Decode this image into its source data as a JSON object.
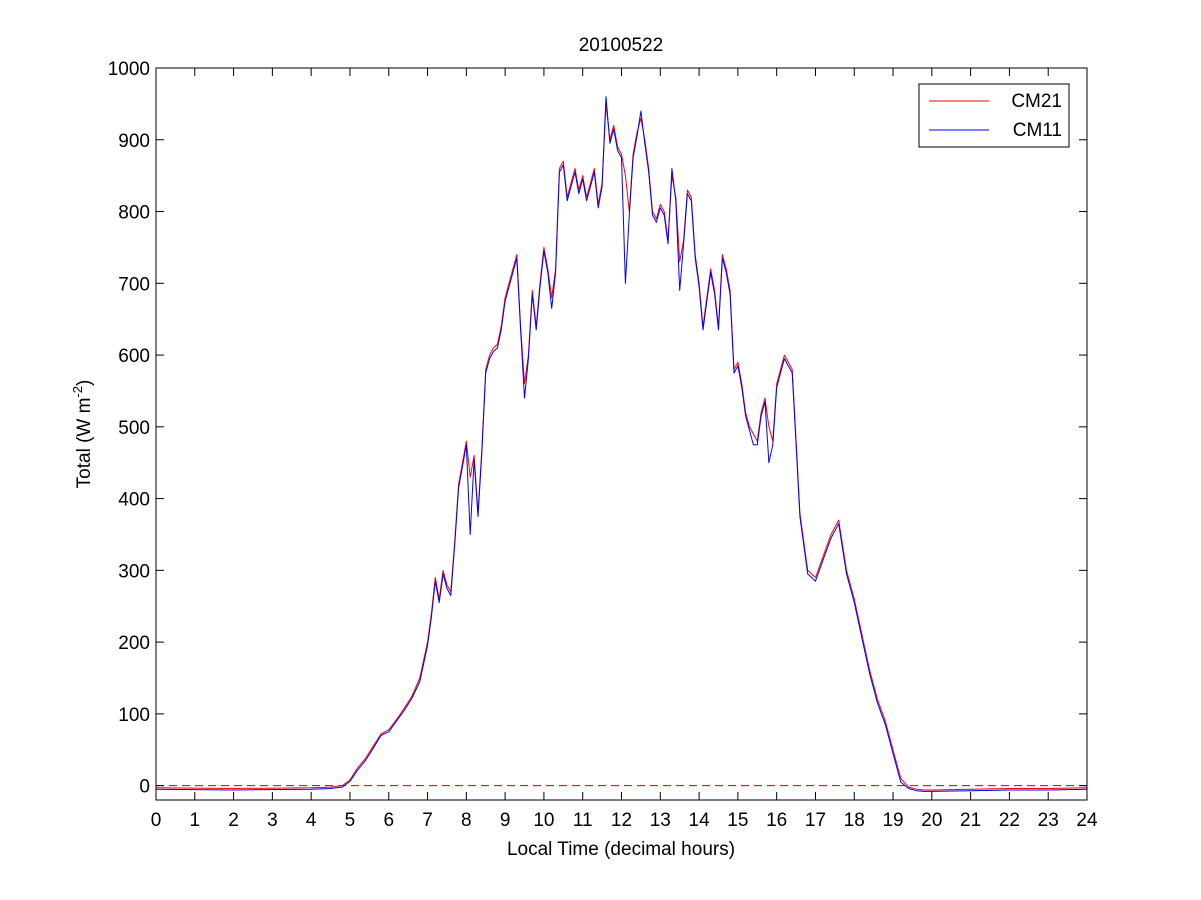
{
  "chart_data": {
    "type": "line",
    "title": "20100522",
    "xlabel": "Local Time (decimal hours)",
    "ylabel": "Total (W m",
    "ylabel_sup": "-2",
    "ylabel_end": ")",
    "xlim": [
      0,
      24
    ],
    "ylim": [
      -20,
      1000
    ],
    "xticks": [
      "0",
      "1",
      "2",
      "3",
      "4",
      "5",
      "6",
      "7",
      "8",
      "9",
      "10",
      "11",
      "12",
      "13",
      "14",
      "15",
      "16",
      "17",
      "18",
      "19",
      "20",
      "21",
      "22",
      "23",
      "24"
    ],
    "yticks": [
      "0",
      "100",
      "200",
      "300",
      "400",
      "500",
      "600",
      "700",
      "800",
      "900",
      "1000"
    ],
    "grid": false,
    "legend_position": "top-right",
    "reference_line": {
      "y": 0,
      "style": "dashed",
      "color": "#cc0000"
    },
    "series": [
      {
        "name": "CM21",
        "color": "#ff0000",
        "x": [
          0,
          2,
          4,
          4.5,
          4.8,
          5.0,
          5.2,
          5.4,
          5.6,
          5.8,
          6.0,
          6.2,
          6.4,
          6.6,
          6.8,
          7.0,
          7.1,
          7.2,
          7.3,
          7.4,
          7.5,
          7.6,
          7.7,
          7.8,
          7.9,
          8.0,
          8.1,
          8.2,
          8.3,
          8.4,
          8.5,
          8.6,
          8.7,
          8.8,
          8.9,
          9.0,
          9.1,
          9.2,
          9.3,
          9.4,
          9.5,
          9.6,
          9.7,
          9.8,
          9.9,
          10.0,
          10.1,
          10.2,
          10.3,
          10.4,
          10.5,
          10.6,
          10.7,
          10.8,
          10.9,
          11.0,
          11.1,
          11.2,
          11.3,
          11.4,
          11.5,
          11.6,
          11.7,
          11.8,
          11.9,
          12.0,
          12.1,
          12.2,
          12.3,
          12.4,
          12.5,
          12.6,
          12.7,
          12.8,
          12.9,
          13.0,
          13.1,
          13.2,
          13.3,
          13.4,
          13.5,
          13.6,
          13.7,
          13.8,
          13.9,
          14.0,
          14.1,
          14.2,
          14.3,
          14.4,
          14.5,
          14.6,
          14.7,
          14.8,
          14.9,
          15.0,
          15.1,
          15.2,
          15.3,
          15.4,
          15.5,
          15.6,
          15.7,
          15.8,
          15.9,
          16.0,
          16.2,
          16.4,
          16.5,
          16.6,
          16.8,
          17.0,
          17.2,
          17.4,
          17.6,
          17.8,
          18.0,
          18.2,
          18.4,
          18.6,
          18.8,
          19.0,
          19.2,
          19.4,
          19.6,
          19.8,
          20,
          21,
          22,
          23,
          24
        ],
        "y": [
          -3,
          -4,
          -3,
          -2,
          0,
          8,
          25,
          38,
          55,
          72,
          78,
          92,
          108,
          125,
          150,
          200,
          240,
          290,
          260,
          300,
          280,
          270,
          340,
          420,
          450,
          480,
          430,
          460,
          380,
          470,
          580,
          600,
          610,
          615,
          640,
          680,
          700,
          720,
          740,
          640,
          560,
          600,
          690,
          640,
          700,
          750,
          720,
          680,
          720,
          860,
          870,
          820,
          840,
          860,
          830,
          850,
          820,
          840,
          860,
          810,
          840,
          950,
          900,
          920,
          890,
          880,
          850,
          800,
          880,
          910,
          930,
          900,
          860,
          800,
          790,
          810,
          800,
          760,
          850,
          820,
          730,
          760,
          830,
          820,
          740,
          700,
          640,
          680,
          720,
          690,
          640,
          740,
          720,
          690,
          580,
          590,
          560,
          520,
          500,
          490,
          480,
          520,
          540,
          500,
          480,
          560,
          600,
          580,
          480,
          380,
          300,
          290,
          320,
          350,
          370,
          300,
          260,
          210,
          160,
          120,
          90,
          50,
          10,
          -2,
          -5,
          -6,
          -6,
          -5,
          -4,
          -4,
          -3
        ]
      },
      {
        "name": "CM11",
        "color": "#0000ff",
        "x": [
          0,
          2,
          4,
          4.5,
          4.8,
          5.0,
          5.2,
          5.4,
          5.6,
          5.8,
          6.0,
          6.2,
          6.4,
          6.6,
          6.8,
          7.0,
          7.1,
          7.2,
          7.3,
          7.4,
          7.5,
          7.6,
          7.7,
          7.8,
          7.9,
          8.0,
          8.1,
          8.2,
          8.3,
          8.4,
          8.5,
          8.6,
          8.7,
          8.8,
          8.9,
          9.0,
          9.1,
          9.2,
          9.3,
          9.4,
          9.5,
          9.6,
          9.7,
          9.8,
          9.9,
          10.0,
          10.1,
          10.2,
          10.3,
          10.4,
          10.5,
          10.6,
          10.7,
          10.8,
          10.9,
          11.0,
          11.1,
          11.2,
          11.3,
          11.4,
          11.5,
          11.6,
          11.7,
          11.8,
          11.9,
          12.0,
          12.1,
          12.2,
          12.3,
          12.4,
          12.5,
          12.6,
          12.7,
          12.8,
          12.9,
          13.0,
          13.1,
          13.2,
          13.3,
          13.4,
          13.5,
          13.6,
          13.7,
          13.8,
          13.9,
          14.0,
          14.1,
          14.2,
          14.3,
          14.4,
          14.5,
          14.6,
          14.7,
          14.8,
          14.9,
          15.0,
          15.1,
          15.2,
          15.3,
          15.4,
          15.5,
          15.6,
          15.7,
          15.8,
          15.9,
          16.0,
          16.2,
          16.4,
          16.5,
          16.6,
          16.8,
          17.0,
          17.2,
          17.4,
          17.6,
          17.8,
          18.0,
          18.2,
          18.4,
          18.6,
          18.8,
          19.0,
          19.2,
          19.4,
          19.6,
          19.8,
          20,
          21,
          22,
          23,
          24
        ],
        "y": [
          -5,
          -6,
          -5,
          -4,
          -2,
          6,
          22,
          35,
          52,
          70,
          75,
          90,
          105,
          122,
          145,
          195,
          235,
          285,
          255,
          295,
          275,
          265,
          335,
          415,
          445,
          475,
          350,
          455,
          375,
          465,
          575,
          595,
          605,
          610,
          635,
          675,
          695,
          715,
          735,
          635,
          540,
          595,
          685,
          635,
          695,
          745,
          715,
          665,
          715,
          855,
          865,
          815,
          835,
          855,
          825,
          845,
          815,
          835,
          855,
          805,
          835,
          960,
          895,
          915,
          885,
          875,
          700,
          795,
          875,
          905,
          940,
          895,
          855,
          795,
          785,
          805,
          795,
          755,
          860,
          815,
          690,
          755,
          825,
          815,
          735,
          695,
          635,
          675,
          715,
          685,
          635,
          735,
          715,
          685,
          575,
          585,
          555,
          515,
          495,
          475,
          475,
          515,
          535,
          450,
          475,
          555,
          595,
          575,
          475,
          375,
          295,
          285,
          315,
          345,
          365,
          295,
          255,
          205,
          155,
          115,
          85,
          45,
          5,
          -4,
          -7,
          -8,
          -8,
          -7,
          -6,
          -6,
          -5
        ]
      }
    ]
  }
}
